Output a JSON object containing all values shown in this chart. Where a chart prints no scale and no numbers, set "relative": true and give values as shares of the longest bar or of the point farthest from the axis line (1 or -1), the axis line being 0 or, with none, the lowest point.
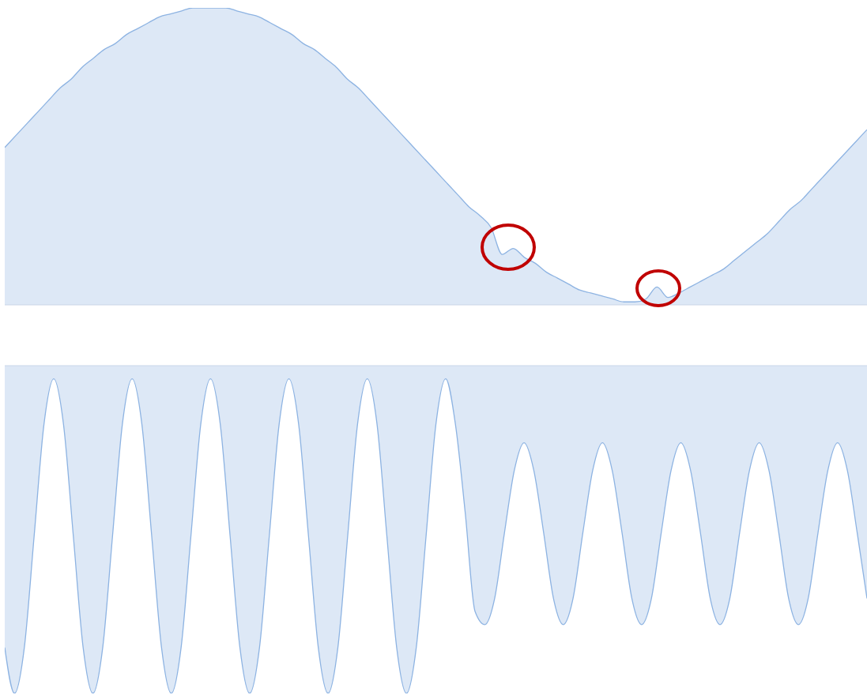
{
  "chart_data": [
    {
      "type": "area",
      "relative": true,
      "categories": [
        null,
        null,
        null,
        null,
        null,
        null,
        null,
        null,
        null,
        null,
        null,
        null,
        null,
        null,
        null,
        null,
        null,
        null,
        null,
        null,
        null,
        null,
        null,
        null,
        null,
        null,
        null,
        null,
        null,
        null,
        null,
        null,
        null,
        null,
        null,
        null,
        null,
        null,
        null,
        null,
        null,
        null,
        null,
        null,
        null,
        null,
        null,
        null,
        null,
        null,
        null,
        null,
        null,
        null,
        null,
        null,
        null,
        null,
        null,
        null,
        null,
        null,
        null,
        null,
        null,
        null,
        null,
        null,
        null,
        null,
        null,
        null,
        null,
        null,
        null,
        null,
        null,
        null,
        null
      ],
      "series": [
        {
          "color": "#8db3e2",
          "values": [
            0.53,
            0.57,
            0.61,
            0.65,
            0.69,
            0.73,
            0.76,
            0.8,
            0.83,
            0.86,
            0.88,
            0.91,
            0.93,
            0.95,
            0.97,
            0.98,
            0.99,
            1.0,
            1.0,
            1.0,
            1.0,
            0.99,
            0.98,
            0.97,
            0.95,
            0.93,
            0.91,
            0.88,
            0.86,
            0.83,
            0.8,
            0.76,
            0.73,
            0.69,
            0.65,
            0.61,
            0.57,
            0.53,
            0.49,
            0.45,
            0.41,
            0.37,
            0.33,
            0.3,
            0.26,
            0.17,
            0.19,
            0.16,
            0.14,
            0.11,
            0.09,
            0.07,
            0.05,
            0.04,
            0.03,
            0.02,
            0.01,
            0.01,
            0.02,
            0.06,
            0.025,
            0.04,
            0.06,
            0.08,
            0.1,
            0.12,
            0.15,
            0.18,
            0.21,
            0.24,
            0.28,
            0.32,
            0.35,
            0.39,
            0.43,
            0.47,
            0.51,
            0.55,
            0.59
          ]
        }
      ]
    },
    {
      "type": "area",
      "relative": true,
      "categories": [
        null,
        null,
        null,
        null,
        null,
        null,
        null,
        null,
        null,
        null,
        null,
        null,
        null,
        null,
        null,
        null,
        null,
        null,
        null,
        null,
        null,
        null,
        null,
        null,
        null,
        null,
        null,
        null,
        null,
        null,
        null,
        null,
        null,
        null,
        null,
        null,
        null,
        null,
        null,
        null,
        null,
        null,
        null,
        null,
        null,
        null,
        null,
        null,
        null,
        null,
        null,
        null,
        null,
        null,
        null,
        null,
        null,
        null,
        null,
        null,
        null,
        null,
        null,
        null,
        null,
        null,
        null,
        null,
        null,
        null,
        null,
        null,
        null,
        null,
        null,
        null,
        null,
        null,
        null,
        null,
        null,
        null,
        null,
        null,
        null,
        null,
        null,
        null,
        null
      ],
      "series": [
        {
          "color": "#8db3e2",
          "values": [
            -0.86,
            -1,
            -0.86,
            -0.52,
            -0.18,
            -0.04,
            -0.18,
            -0.52,
            -0.86,
            -1,
            -0.86,
            -0.52,
            -0.18,
            -0.04,
            -0.18,
            -0.52,
            -0.86,
            -1,
            -0.86,
            -0.52,
            -0.18,
            -0.04,
            -0.18,
            -0.52,
            -0.86,
            -1,
            -0.86,
            -0.52,
            -0.18,
            -0.04,
            -0.18,
            -0.52,
            -0.86,
            -1,
            -0.86,
            -0.52,
            -0.18,
            -0.04,
            -0.18,
            -0.52,
            -0.86,
            -1,
            -0.86,
            -0.52,
            -0.18,
            -0.04,
            -0.18,
            -0.45,
            -0.75,
            -0.79,
            -0.71,
            -0.51,
            -0.32,
            -0.235,
            -0.32,
            -0.51,
            -0.71,
            -0.79,
            -0.71,
            -0.51,
            -0.32,
            -0.235,
            -0.32,
            -0.51,
            -0.71,
            -0.79,
            -0.71,
            -0.51,
            -0.32,
            -0.235,
            -0.32,
            -0.51,
            -0.71,
            -0.79,
            -0.71,
            -0.51,
            -0.32,
            -0.235,
            -0.32,
            -0.51,
            -0.71,
            -0.79,
            -0.71,
            -0.51,
            -0.32,
            -0.235,
            -0.32,
            -0.51,
            -0.71
          ]
        }
      ]
    }
  ]
}
